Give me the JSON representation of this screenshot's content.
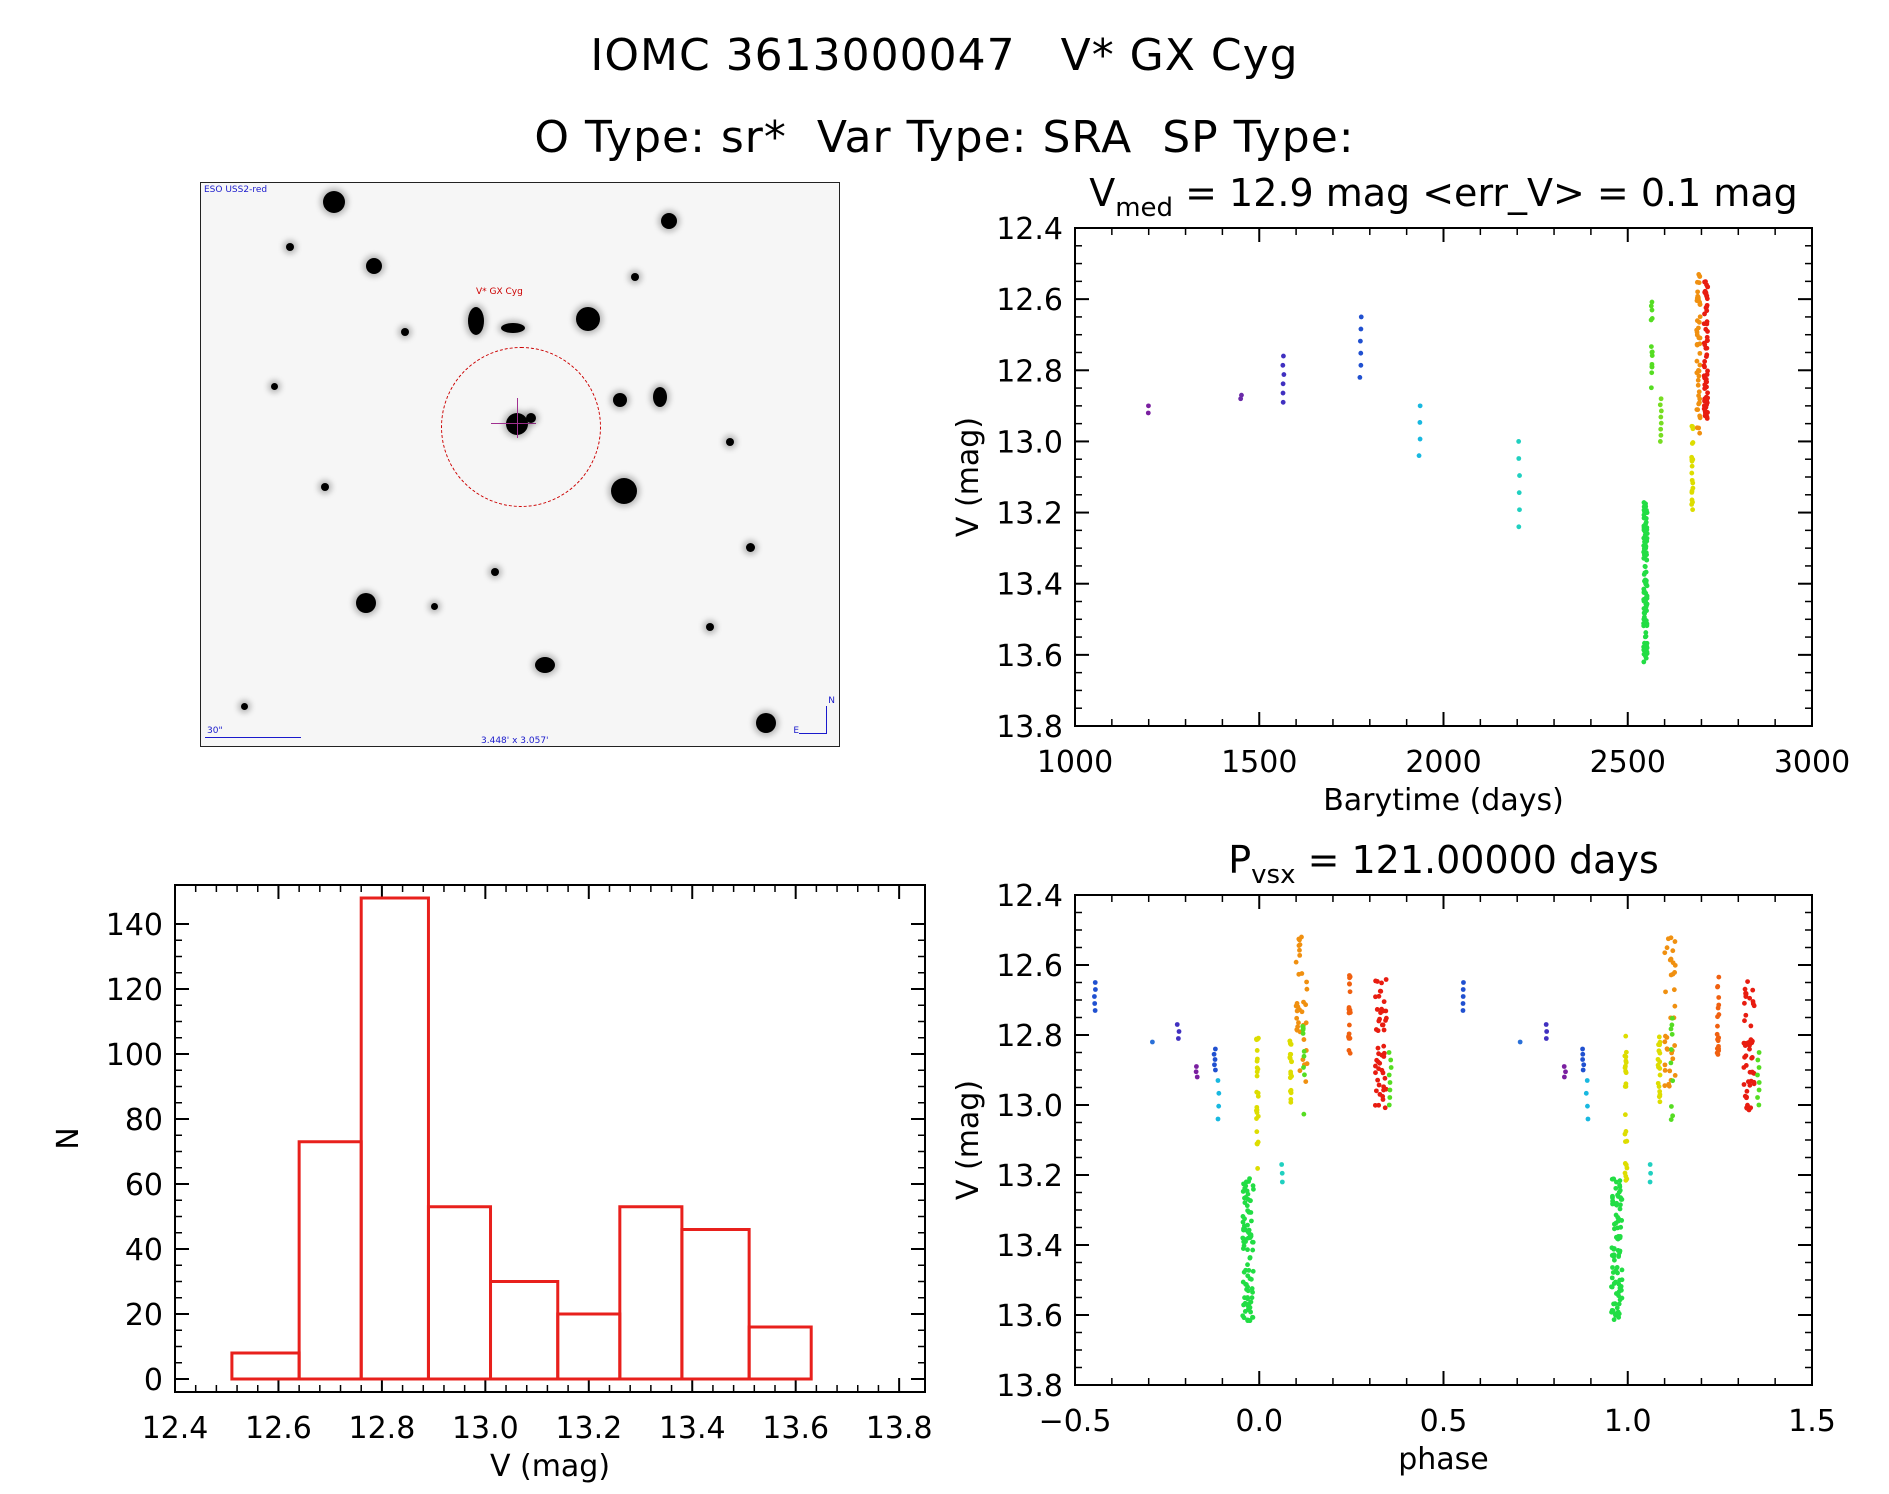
{
  "header": {
    "line1": "IOMC 3613000047   V* GX Cyg",
    "line2": "O Type: sr*  Var Type: SRA  SP Type:"
  },
  "finder": {
    "survey": "ESO USS2-red",
    "target_label": "V* GX Cyg",
    "scale_label": "30\"",
    "fov_label": "3.448' x 3.057'",
    "north": "N",
    "east": "E"
  },
  "colors": {
    "axis": "#000000",
    "histogram": "#e8201c",
    "frame": "#222222"
  },
  "chart_data": [
    {
      "id": "lightcurve",
      "type": "scatter",
      "title_main": "V",
      "title_sub": "med",
      "title_rest": " = 12.9 mag <err_V> = 0.1 mag",
      "xlabel": "Barytime (days)",
      "ylabel": "V (mag)",
      "xlim": [
        1000,
        3000
      ],
      "ylim": [
        13.8,
        12.4
      ],
      "xticks": [
        1000,
        1500,
        2000,
        2500,
        3000
      ],
      "xtick_labels": [
        "1000",
        "1500",
        "2000",
        "2500",
        "3000"
      ],
      "yticks": [
        12.4,
        12.6,
        12.8,
        13.0,
        13.2,
        13.4,
        13.6,
        13.8
      ],
      "ytick_labels": [
        "12.4",
        "12.6",
        "12.8",
        "13.0",
        "13.2",
        "13.4",
        "13.6",
        "13.8"
      ],
      "groups": [
        {
          "x": 1200,
          "ymin": 12.9,
          "ymax": 12.92,
          "n": 2,
          "color": "#7a1fa0"
        },
        {
          "x": 1450,
          "ymin": 12.87,
          "ymax": 12.88,
          "n": 2,
          "color": "#6a2aa8"
        },
        {
          "x": 1565,
          "ymin": 12.76,
          "ymax": 12.89,
          "n": 6,
          "color": "#4030c0"
        },
        {
          "x": 1775,
          "ymin": 12.65,
          "ymax": 12.82,
          "n": 6,
          "color": "#2050d0"
        },
        {
          "x": 1935,
          "ymin": 12.9,
          "ymax": 13.04,
          "n": 4,
          "color": "#18b8e0"
        },
        {
          "x": 2205,
          "ymin": 13.0,
          "ymax": 13.24,
          "n": 6,
          "color": "#20d0c0"
        },
        {
          "x": 2548,
          "ymin": 13.17,
          "ymax": 13.62,
          "n": 110,
          "color": "#22dd44"
        },
        {
          "x": 2565,
          "ymin": 12.6,
          "ymax": 12.86,
          "n": 14,
          "color": "#55dd22"
        },
        {
          "x": 2590,
          "ymin": 12.88,
          "ymax": 13.0,
          "n": 8,
          "color": "#77dd22"
        },
        {
          "x": 2675,
          "ymin": 12.95,
          "ymax": 13.2,
          "n": 20,
          "color": "#dddd00"
        },
        {
          "x": 2692,
          "ymin": 12.52,
          "ymax": 12.98,
          "n": 50,
          "color": "#f09010"
        },
        {
          "x": 2712,
          "ymin": 12.55,
          "ymax": 12.95,
          "n": 70,
          "color": "#e81c10"
        }
      ]
    },
    {
      "id": "phase",
      "type": "scatter",
      "title_main": "P",
      "title_sub": "vsx",
      "title_rest": " = 121.00000 days",
      "xlabel": "phase",
      "ylabel": "V (mag)",
      "xlim": [
        -0.5,
        1.5
      ],
      "ylim": [
        13.8,
        12.4
      ],
      "xticks": [
        -0.5,
        0.0,
        0.5,
        1.0,
        1.5
      ],
      "xtick_labels": [
        "−0.5",
        "0.0",
        "0.5",
        "1.0",
        "1.5"
      ],
      "yticks": [
        12.4,
        12.6,
        12.8,
        13.0,
        13.2,
        13.4,
        13.6,
        13.8
      ],
      "ytick_labels": [
        "12.4",
        "12.6",
        "12.8",
        "13.0",
        "13.2",
        "13.4",
        "13.6",
        "13.8"
      ],
      "groups": [
        {
          "x": -0.445,
          "ymin": 12.65,
          "ymax": 12.73,
          "n": 5,
          "color": "#2050d0"
        },
        {
          "x": -0.29,
          "ymin": 12.82,
          "ymax": 12.82,
          "n": 1,
          "color": "#2a70d8"
        },
        {
          "x": -0.22,
          "ymin": 12.77,
          "ymax": 12.81,
          "n": 3,
          "color": "#4030c0"
        },
        {
          "x": -0.17,
          "ymin": 12.89,
          "ymax": 12.92,
          "n": 3,
          "color": "#7a1fa0"
        },
        {
          "x": -0.12,
          "ymin": 12.84,
          "ymax": 12.9,
          "n": 5,
          "color": "#2050d0"
        },
        {
          "x": -0.11,
          "ymin": 12.93,
          "ymax": 13.04,
          "n": 4,
          "color": "#18b8e0"
        },
        {
          "x": -0.03,
          "ymin": 13.21,
          "ymax": 13.62,
          "n": 90,
          "color": "#22dd44"
        },
        {
          "x": -0.005,
          "ymin": 12.8,
          "ymax": 13.22,
          "n": 25,
          "color": "#dddd00"
        },
        {
          "x": 0.06,
          "ymin": 13.17,
          "ymax": 13.22,
          "n": 3,
          "color": "#20d0c0"
        },
        {
          "x": 0.085,
          "ymin": 12.8,
          "ymax": 13.0,
          "n": 20,
          "color": "#dddd00"
        },
        {
          "x": 0.115,
          "ymin": 12.52,
          "ymax": 12.95,
          "n": 35,
          "color": "#f09010"
        },
        {
          "x": 0.12,
          "ymin": 12.75,
          "ymax": 13.06,
          "n": 10,
          "color": "#55dd22"
        },
        {
          "x": 0.245,
          "ymin": 12.63,
          "ymax": 12.86,
          "n": 20,
          "color": "#f06010"
        },
        {
          "x": 0.33,
          "ymin": 12.64,
          "ymax": 13.02,
          "n": 50,
          "color": "#e81c10"
        },
        {
          "x": 0.355,
          "ymin": 12.85,
          "ymax": 13.0,
          "n": 8,
          "color": "#55dd22"
        },
        {
          "x": 0.555,
          "ymin": 12.65,
          "ymax": 12.73,
          "n": 5,
          "color": "#2050d0"
        },
        {
          "x": 0.71,
          "ymin": 12.82,
          "ymax": 12.82,
          "n": 1,
          "color": "#2a70d8"
        },
        {
          "x": 0.78,
          "ymin": 12.77,
          "ymax": 12.81,
          "n": 3,
          "color": "#4030c0"
        },
        {
          "x": 0.83,
          "ymin": 12.89,
          "ymax": 12.92,
          "n": 3,
          "color": "#7a1fa0"
        },
        {
          "x": 0.88,
          "ymin": 12.84,
          "ymax": 12.9,
          "n": 5,
          "color": "#2050d0"
        },
        {
          "x": 0.89,
          "ymin": 12.93,
          "ymax": 13.04,
          "n": 4,
          "color": "#18b8e0"
        },
        {
          "x": 0.97,
          "ymin": 13.21,
          "ymax": 13.62,
          "n": 90,
          "color": "#22dd44"
        },
        {
          "x": 0.995,
          "ymin": 12.8,
          "ymax": 13.22,
          "n": 25,
          "color": "#dddd00"
        },
        {
          "x": 1.06,
          "ymin": 13.17,
          "ymax": 13.22,
          "n": 3,
          "color": "#20d0c0"
        },
        {
          "x": 1.085,
          "ymin": 12.8,
          "ymax": 13.0,
          "n": 20,
          "color": "#dddd00"
        },
        {
          "x": 1.115,
          "ymin": 12.52,
          "ymax": 12.95,
          "n": 35,
          "color": "#f09010"
        },
        {
          "x": 1.12,
          "ymin": 12.75,
          "ymax": 13.06,
          "n": 10,
          "color": "#55dd22"
        },
        {
          "x": 1.245,
          "ymin": 12.63,
          "ymax": 12.86,
          "n": 20,
          "color": "#f06010"
        },
        {
          "x": 1.33,
          "ymin": 12.64,
          "ymax": 13.02,
          "n": 50,
          "color": "#e81c10"
        },
        {
          "x": 1.355,
          "ymin": 12.85,
          "ymax": 13.0,
          "n": 8,
          "color": "#55dd22"
        }
      ]
    },
    {
      "id": "histogram",
      "type": "bar",
      "xlabel": "V (mag)",
      "ylabel": "N",
      "xlim": [
        12.4,
        13.85
      ],
      "ylim": [
        -4,
        152
      ],
      "xticks": [
        12.4,
        12.6,
        12.8,
        13.0,
        13.2,
        13.4,
        13.6,
        13.8
      ],
      "xtick_labels": [
        "12.4",
        "12.6",
        "12.8",
        "13.0",
        "13.2",
        "13.4",
        "13.6",
        "13.8"
      ],
      "yticks": [
        0,
        20,
        40,
        60,
        80,
        100,
        120,
        140
      ],
      "ytick_labels": [
        "0",
        "20",
        "40",
        "60",
        "80",
        "100",
        "120",
        "140"
      ],
      "bin_edges": [
        12.51,
        12.64,
        12.76,
        12.89,
        13.01,
        13.14,
        13.26,
        13.38,
        13.51,
        13.63
      ],
      "values": [
        8,
        73,
        148,
        53,
        30,
        20,
        53,
        46,
        16
      ]
    }
  ]
}
